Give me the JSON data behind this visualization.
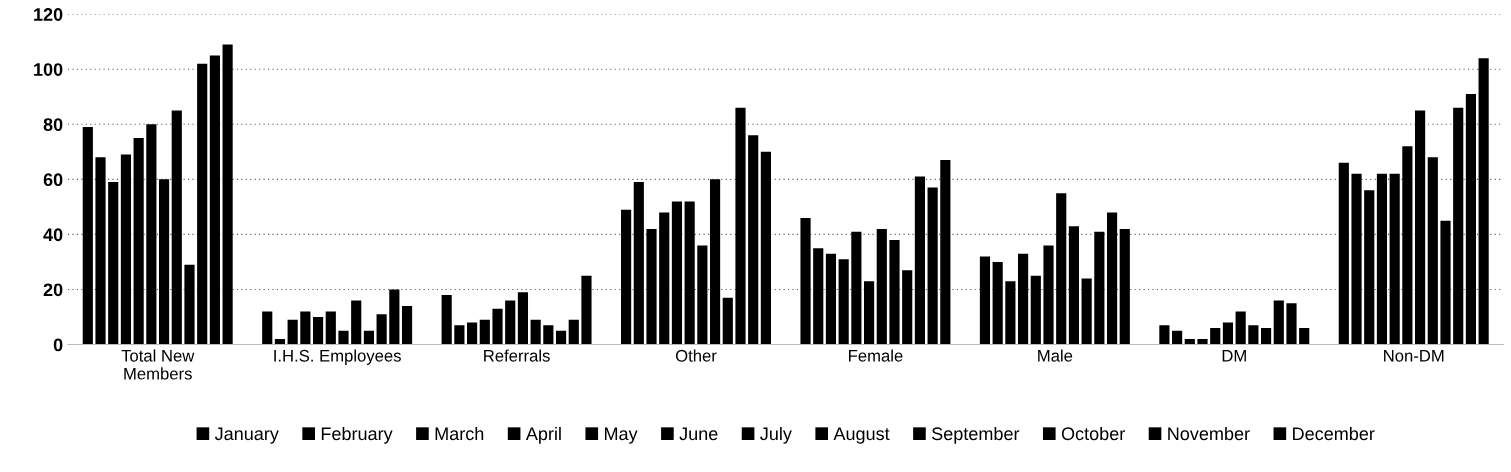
{
  "chart_data": {
    "type": "bar",
    "categories": [
      "Total New\nMembers",
      "I.H.S. Employees",
      "Referrals",
      "Other",
      "Female",
      "Male",
      "DM",
      "Non-DM"
    ],
    "series": [
      {
        "name": "January",
        "color": "#000000",
        "values": [
          79,
          12,
          18,
          49,
          46,
          32,
          7,
          66
        ]
      },
      {
        "name": "February",
        "color": "#000000",
        "values": [
          68,
          2,
          7,
          59,
          35,
          30,
          5,
          62
        ]
      },
      {
        "name": "March",
        "color": "#000000",
        "values": [
          59,
          9,
          8,
          42,
          33,
          23,
          2,
          56
        ]
      },
      {
        "name": "April",
        "color": "#000000",
        "values": [
          69,
          12,
          9,
          48,
          31,
          33,
          2,
          62
        ]
      },
      {
        "name": "May",
        "color": "#000000",
        "values": [
          75,
          10,
          13,
          52,
          41,
          25,
          6,
          62
        ]
      },
      {
        "name": "June",
        "color": "#000000",
        "values": [
          80,
          12,
          16,
          52,
          23,
          36,
          8,
          72
        ]
      },
      {
        "name": "July",
        "color": "#000000",
        "values": [
          60,
          5,
          19,
          36,
          42,
          55,
          12,
          85
        ]
      },
      {
        "name": "August",
        "color": "#000000",
        "values": [
          85,
          16,
          9,
          60,
          38,
          43,
          7,
          68
        ]
      },
      {
        "name": "September",
        "color": "#000000",
        "values": [
          29,
          5,
          7,
          17,
          27,
          24,
          6,
          45
        ]
      },
      {
        "name": "October",
        "color": "#000000",
        "values": [
          102,
          11,
          5,
          86,
          61,
          41,
          16,
          86
        ]
      },
      {
        "name": "November",
        "color": "#000000",
        "values": [
          105,
          20,
          9,
          76,
          57,
          48,
          15,
          91
        ]
      },
      {
        "name": "December",
        "color": "#000000",
        "values": [
          109,
          14,
          25,
          70,
          67,
          42,
          6,
          104
        ]
      }
    ],
    "ylim": [
      0,
      120
    ],
    "yticks": [
      0,
      20,
      40,
      60,
      80,
      100,
      120
    ],
    "grid": "y",
    "legend": "bottom"
  }
}
